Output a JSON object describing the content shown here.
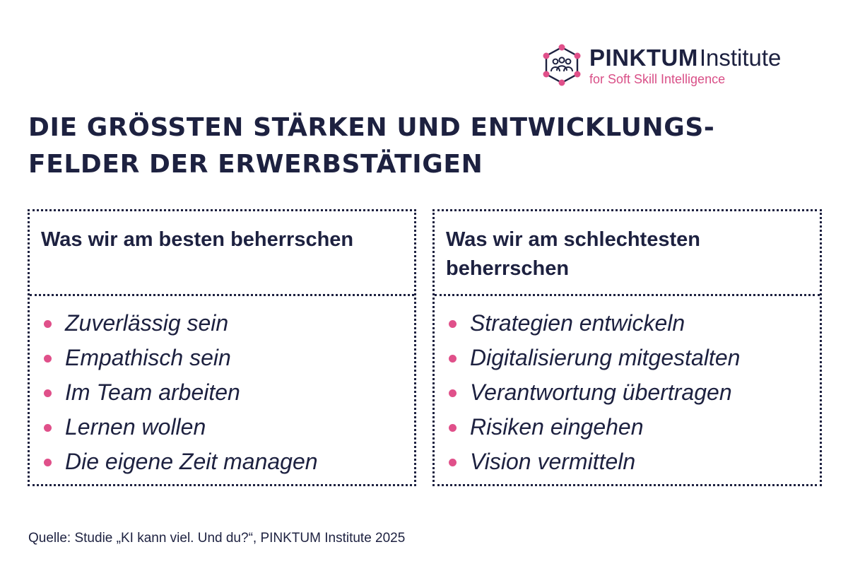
{
  "logo": {
    "brand_bold": "PINKTUM",
    "brand_light": "Institute",
    "tagline": "for Soft Skill Intelligence",
    "icon": "network-people-icon"
  },
  "headline": {
    "line1": "DIE GRÖSSTEN STÄRKEN UND ENTWICKLUNGS-",
    "line2": "FELDER DER ERWERBSTÄTIGEN"
  },
  "columns": [
    {
      "title": "Was wir am besten beherrschen",
      "items": [
        "Zuverlässig sein",
        "Empathisch sein",
        "Im Team arbeiten",
        "Lernen wollen",
        "Die eigene Zeit managen"
      ]
    },
    {
      "title": "Was wir am schlechtesten beherrschen",
      "items": [
        "Strategien entwickeln",
        "Digitalisierung mitgestalten",
        "Verantwortung übertragen",
        "Risiken eingehen",
        "Vision vermitteln"
      ]
    }
  ],
  "source": "Quelle: Studie „KI kann viel. Und du?“, PINKTUM Institute 2025",
  "colors": {
    "navy": "#1d2140",
    "pink": "#e0508a",
    "pink_text": "#d94f87"
  }
}
